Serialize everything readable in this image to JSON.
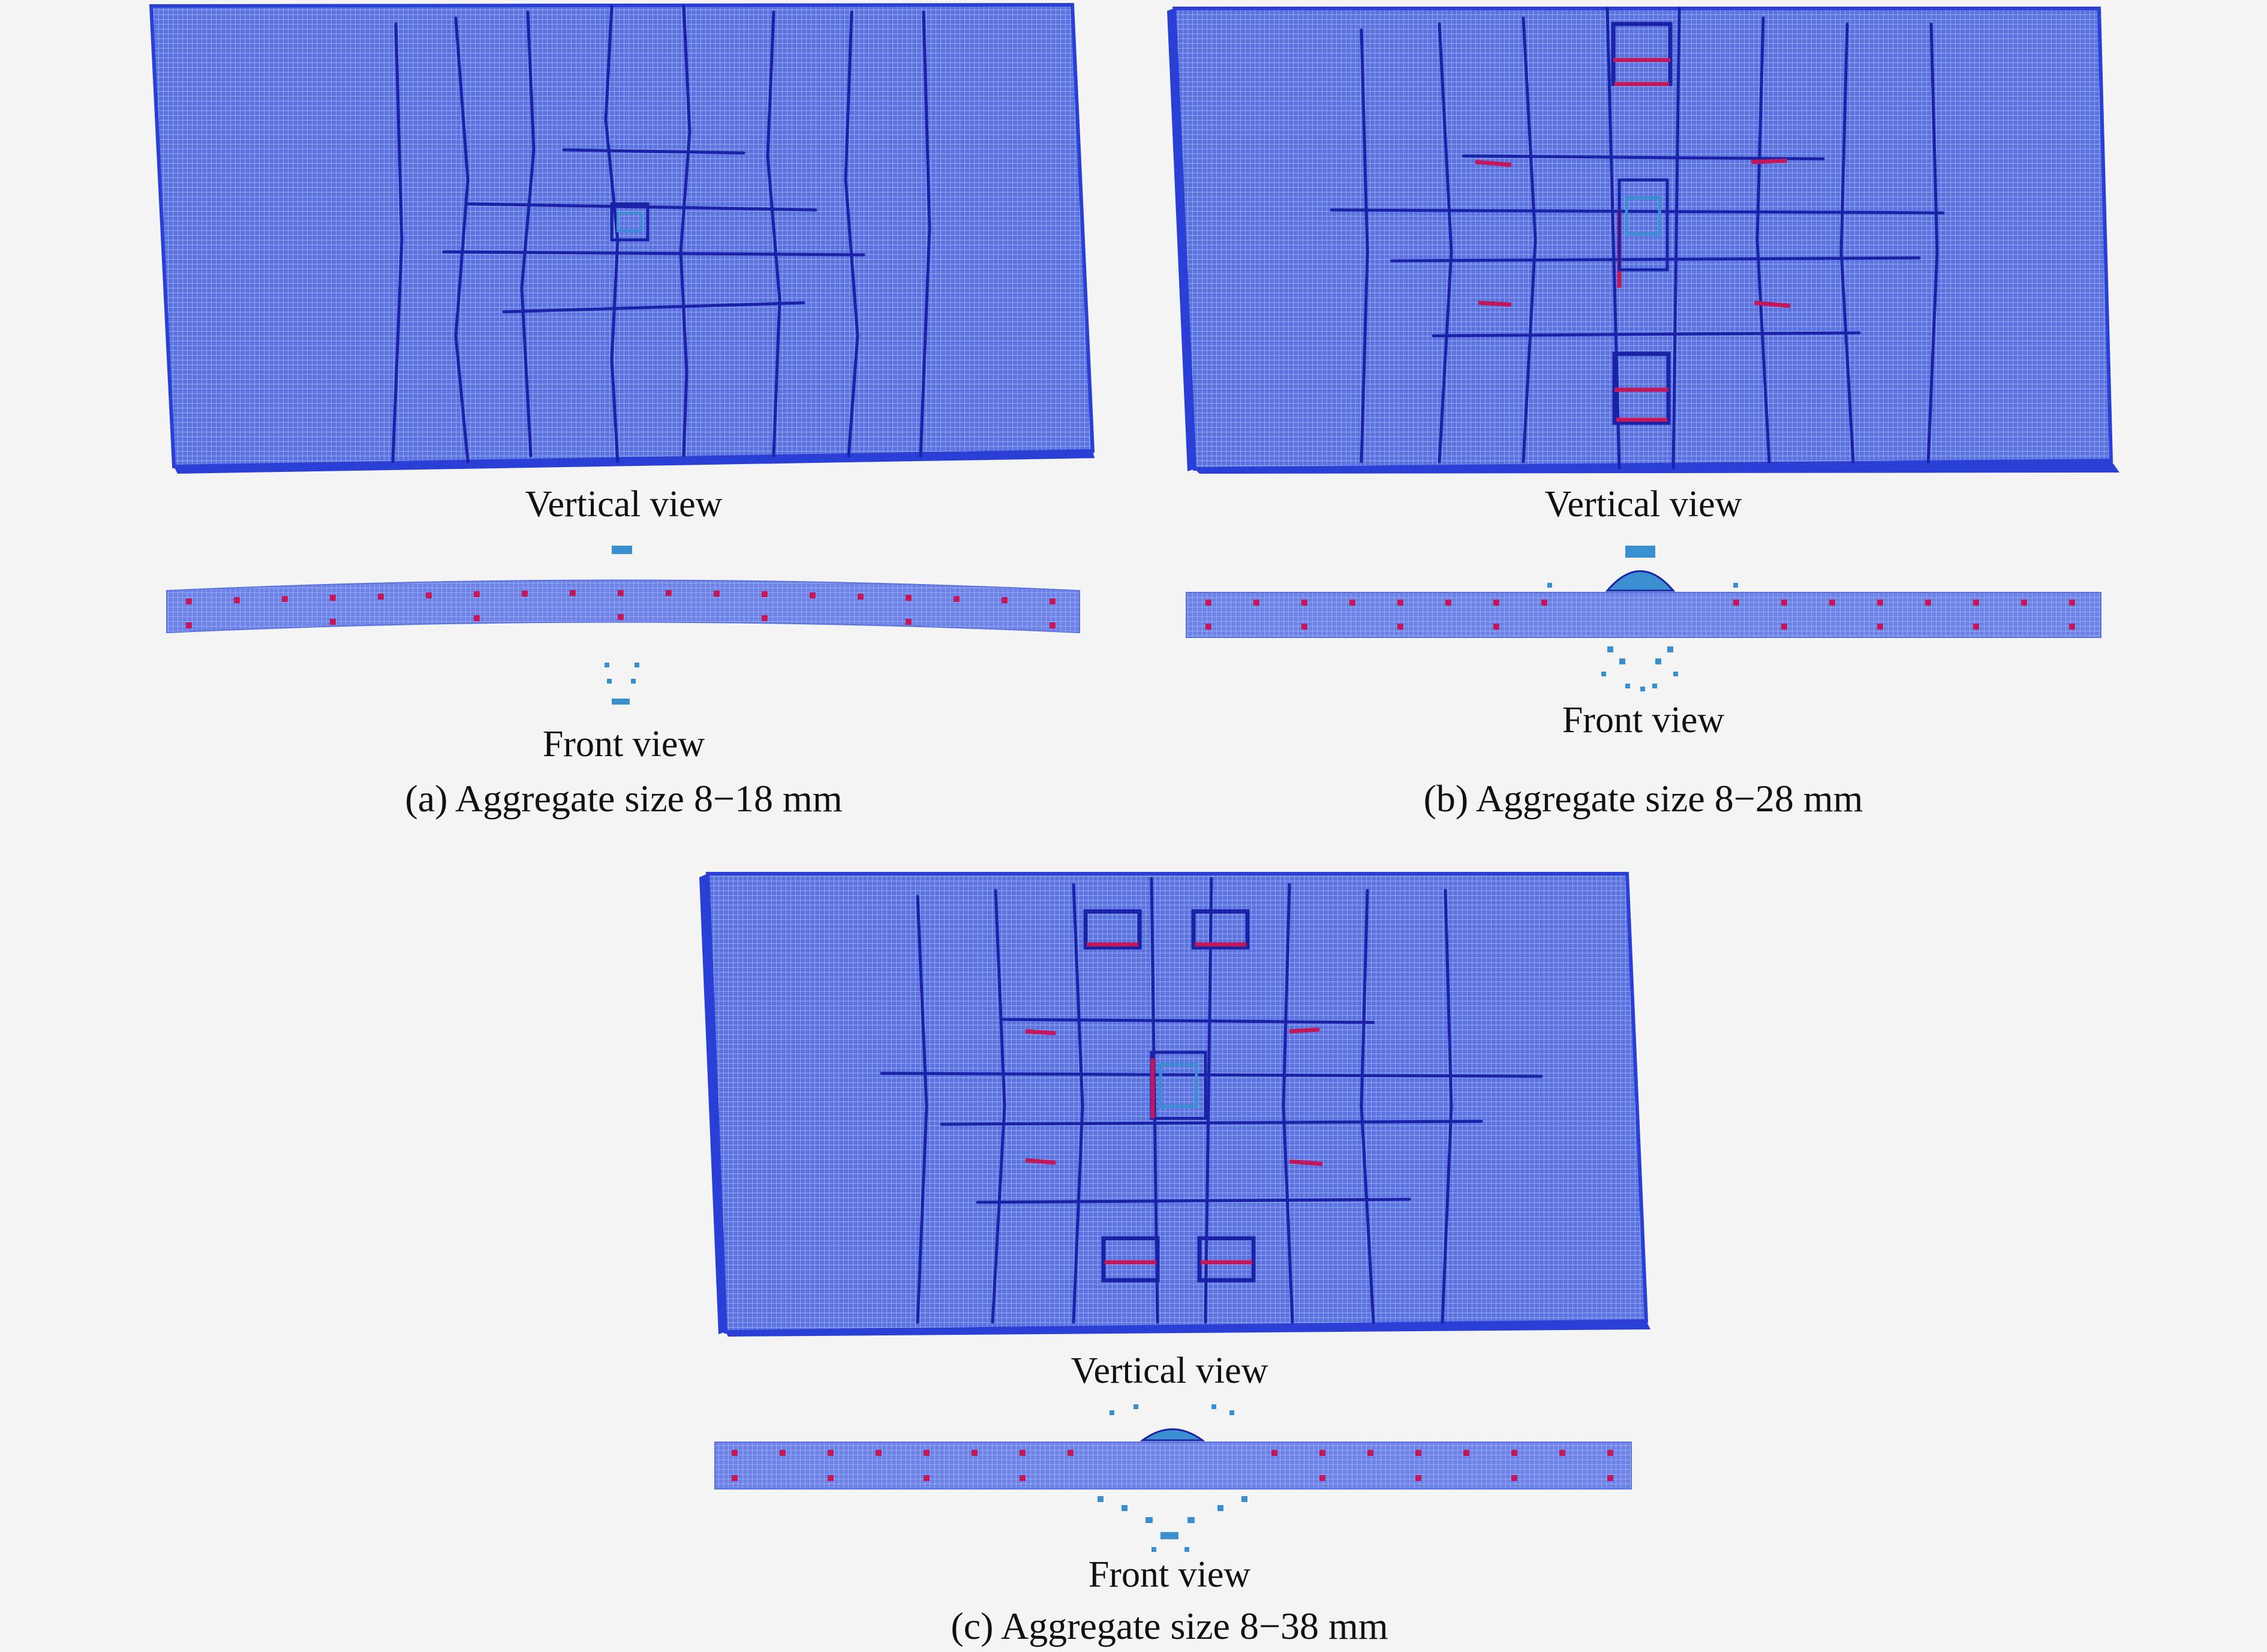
{
  "colors": {
    "mesh_fill": "#5b73e0",
    "mesh_line": "#9bb0ff",
    "crack": "#1a22a8",
    "damage": "#c2185b",
    "edge": "#2a3fd6",
    "fragment": "#3a8fd0"
  },
  "panels": [
    {
      "id": "a",
      "vertical_label": "Vertical view",
      "front_label": "Front view",
      "caption": "(a) Aggregate size 8−18 mm"
    },
    {
      "id": "b",
      "vertical_label": "Vertical view",
      "front_label": "Front view",
      "caption": "(b) Aggregate size 8−28 mm"
    },
    {
      "id": "c",
      "vertical_label": "Vertical view",
      "front_label": "Front view",
      "caption": "(c) Aggregate size 8−38 mm"
    }
  ]
}
